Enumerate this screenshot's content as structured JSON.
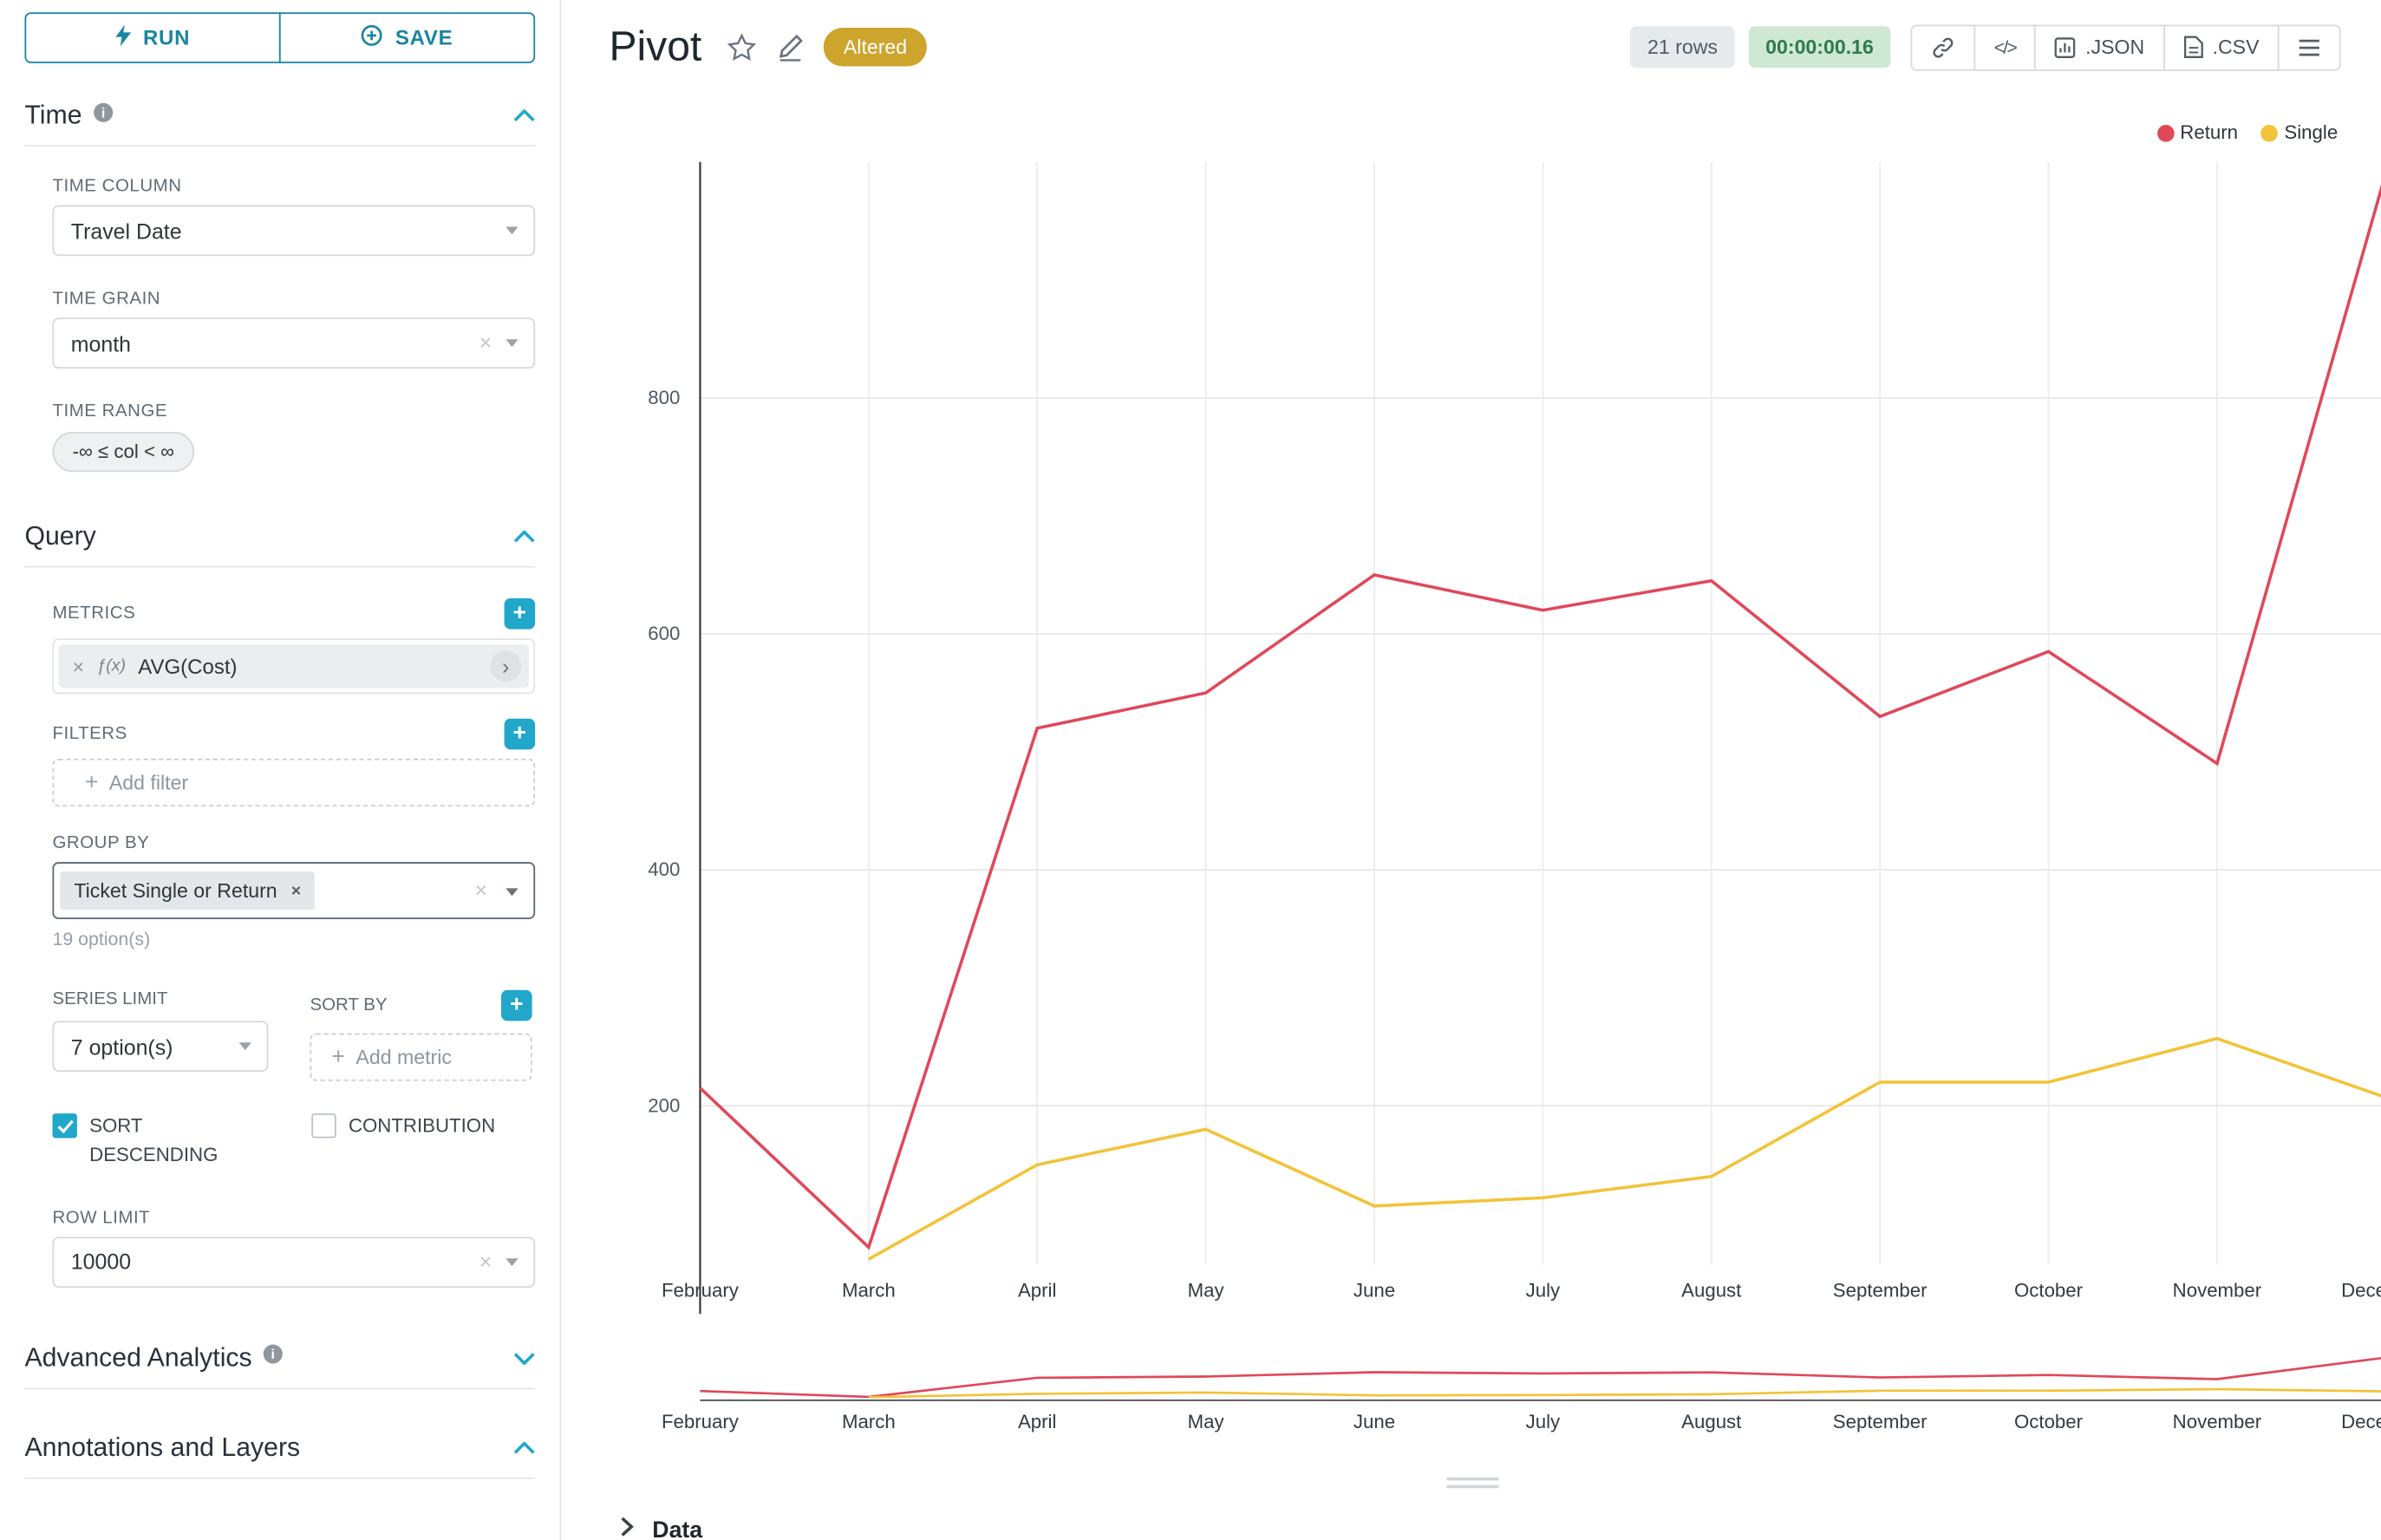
{
  "toolbar": {
    "run": "RUN",
    "save": "SAVE"
  },
  "icons": {
    "plus": "+",
    "close": "×",
    "chevron_right": "›",
    "code": "</>"
  },
  "sidebar": {
    "time": {
      "title": "Time",
      "time_column_label": "TIME COLUMN",
      "time_column_value": "Travel Date",
      "time_grain_label": "TIME GRAIN",
      "time_grain_value": "month",
      "time_range_label": "TIME RANGE",
      "time_range_value": "-∞ ≤ col < ∞"
    },
    "query": {
      "title": "Query",
      "metrics_label": "METRICS",
      "metric": {
        "fx": "ƒ(x)",
        "label": "AVG(Cost)"
      },
      "filters_label": "FILTERS",
      "add_filter_placeholder": "Add filter",
      "group_by_label": "GROUP BY",
      "group_by_value": "Ticket Single or Return",
      "group_by_hint": "19 option(s)",
      "series_limit_label": "SERIES LIMIT",
      "series_limit_value": "7 option(s)",
      "sort_by_label": "SORT BY",
      "add_metric_placeholder": "Add metric",
      "sort_descending_label": "SORT DESCENDING",
      "contribution_label": "CONTRIBUTION",
      "row_limit_label": "ROW LIMIT",
      "row_limit_value": "10000"
    },
    "advanced_analytics_title": "Advanced Analytics",
    "annotations_title": "Annotations and Layers"
  },
  "header": {
    "title": "Pivot",
    "badge": "Altered",
    "row_count": "21 rows",
    "timer": "00:00:00.16",
    "json_button": ".JSON",
    "csv_button": ".CSV"
  },
  "chart_data": {
    "type": "line",
    "title": "",
    "xlabel": "",
    "ylabel": "",
    "categories": [
      "February",
      "March",
      "April",
      "May",
      "June",
      "July",
      "August",
      "September",
      "October",
      "November",
      "December"
    ],
    "series": [
      {
        "name": "Return",
        "color": "#e0485a",
        "values": [
          215,
          80,
          520,
          550,
          650,
          620,
          645,
          530,
          585,
          490,
          990
        ]
      },
      {
        "name": "Single",
        "color": "#f2c338",
        "values": [
          null,
          70,
          150,
          180,
          115,
          122,
          140,
          220,
          220,
          257,
          207
        ]
      }
    ],
    "yticks": [
      200,
      400,
      600,
      800
    ],
    "ylim": [
      65,
      1000
    ],
    "grid": true,
    "legend_position": "top-right",
    "has_mini_preview": true
  },
  "data_panel": {
    "title": "Data"
  },
  "colors": {
    "accent": "#20a7c9",
    "button_teal": "#1985a0",
    "badge_bg": "#cda42c",
    "timer_bg": "#cfe8d4",
    "timer_text": "#2f7a4e",
    "return_line": "#e0485a",
    "single_line": "#f2c338"
  }
}
